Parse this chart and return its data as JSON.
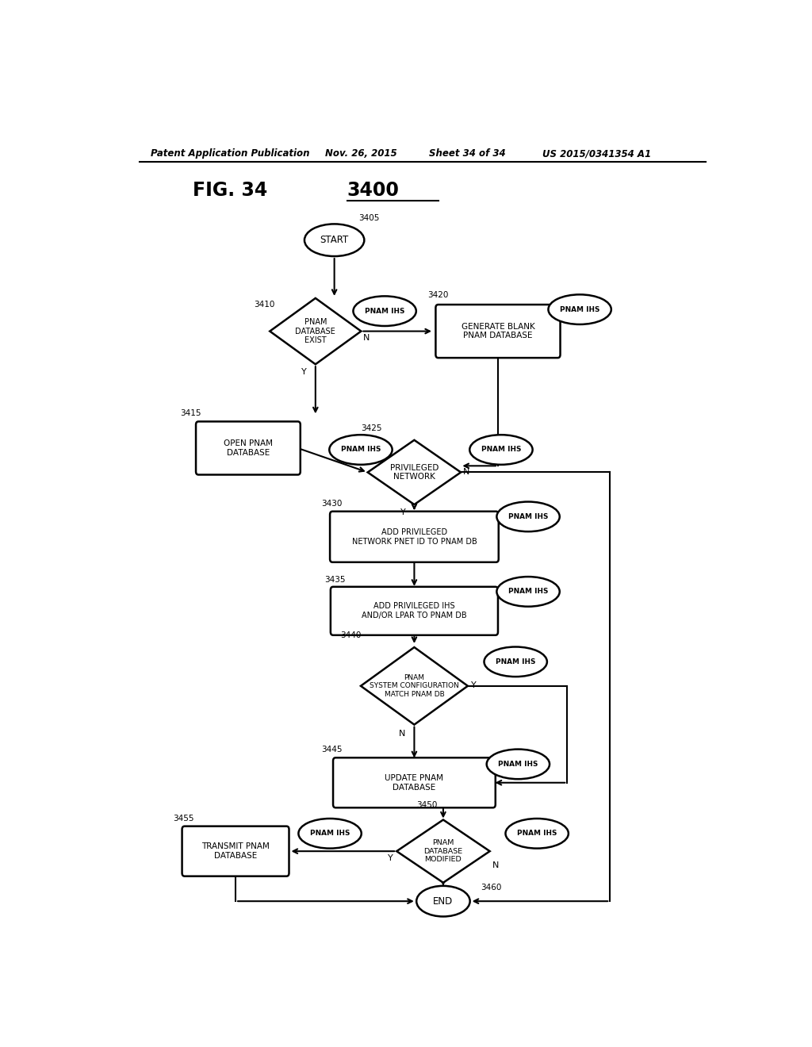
{
  "background": "#ffffff",
  "patent_header_left": "Patent Application Publication",
  "patent_header_mid1": "Nov. 26, 2015",
  "patent_header_mid2": "Sheet 34 of 34",
  "patent_header_right": "US 2015/0341354 A1",
  "fig_label": "FIG. 34",
  "fig_number": "3400",
  "lw": 1.8
}
